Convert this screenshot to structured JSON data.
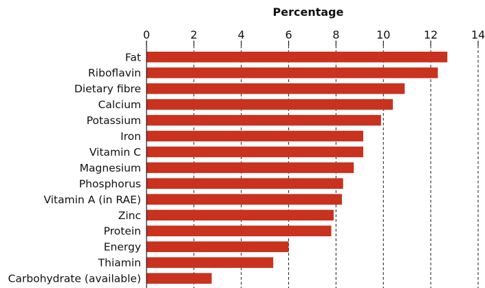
{
  "chart_data": {
    "type": "bar",
    "orientation": "horizontal",
    "title": "",
    "xlabel": "Percentage",
    "ylabel": "",
    "xlim": [
      0,
      14
    ],
    "xticks": [
      "0",
      "2",
      "4",
      "6",
      "8",
      "10",
      "12",
      "14"
    ],
    "grid": true,
    "legend": "none",
    "bar_color": "#c8321e",
    "categories": [
      "Fat",
      "Riboflavin",
      "Dietary fibre",
      "Calcium",
      "Potassium",
      "Iron",
      "Vitamin C",
      "Magnesium",
      "Phosphorus",
      "Vitamin A (in RAE)",
      "Zinc",
      "Protein",
      "Energy",
      "Thiamin",
      "Carbohydrate (available)"
    ],
    "values": [
      12.7,
      12.3,
      10.9,
      10.4,
      9.9,
      9.15,
      9.15,
      8.75,
      8.3,
      8.25,
      7.9,
      7.8,
      6.0,
      5.35,
      2.75
    ]
  }
}
